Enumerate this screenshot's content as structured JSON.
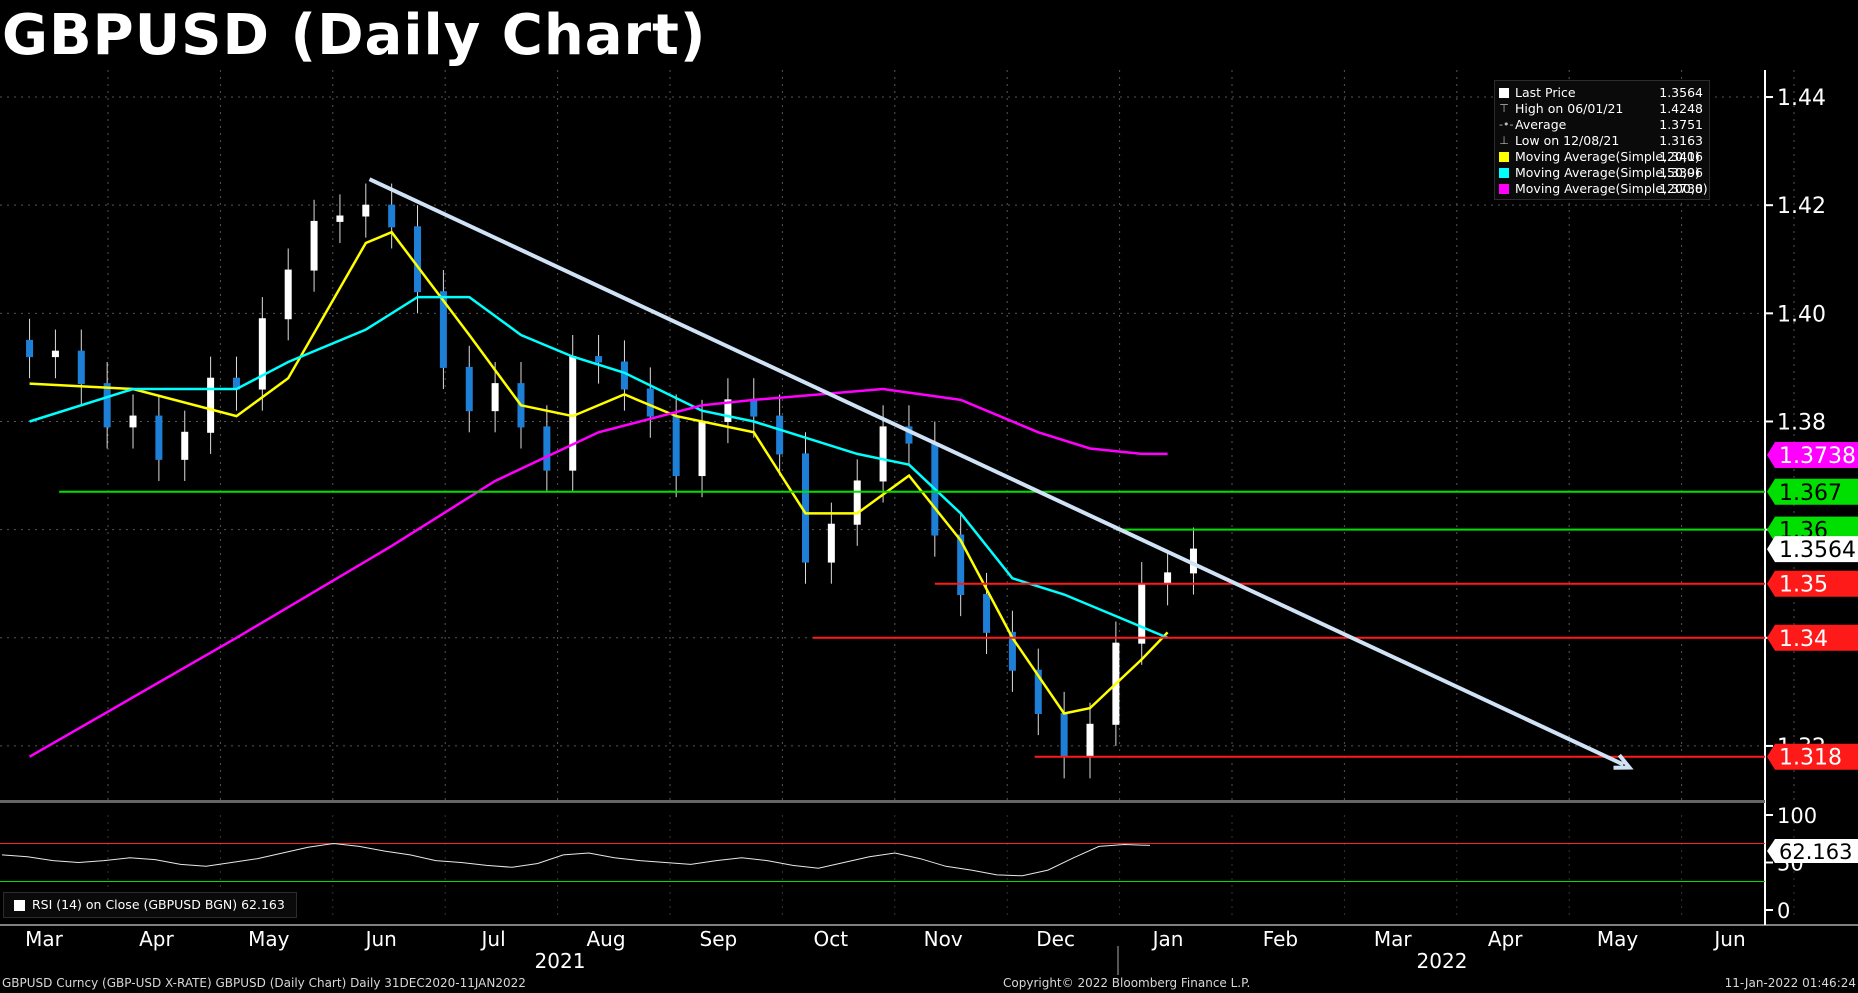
{
  "title": "GBPUSD (Daily Chart)",
  "chart_data": {
    "type": "candlestick",
    "symbol": "GBPUSD",
    "price_axis": {
      "ticks": [
        "1.44",
        "1.42",
        "1.40",
        "1.38",
        "1.36",
        "1.34",
        "1.32"
      ],
      "range": [
        1.31,
        1.445
      ]
    },
    "months": [
      "Mar",
      "Apr",
      "May",
      "Jun",
      "Jul",
      "Aug",
      "Sep",
      "Oct",
      "Nov",
      "Dec",
      "Jan",
      "Feb",
      "Mar",
      "Apr",
      "May",
      "Jun"
    ],
    "years": [
      "2021",
      "2022"
    ],
    "candles_weekly_approx": [
      {
        "date": "2021-03-01",
        "close": 1.392
      },
      {
        "date": "2021-03-08",
        "close": 1.393
      },
      {
        "date": "2021-03-15",
        "close": 1.387
      },
      {
        "date": "2021-03-22",
        "close": 1.379
      },
      {
        "date": "2021-03-29",
        "close": 1.381
      },
      {
        "date": "2021-04-05",
        "close": 1.373
      },
      {
        "date": "2021-04-12",
        "close": 1.378
      },
      {
        "date": "2021-04-19",
        "close": 1.388
      },
      {
        "date": "2021-04-26",
        "close": 1.386
      },
      {
        "date": "2021-05-03",
        "close": 1.399
      },
      {
        "date": "2021-05-10",
        "close": 1.408
      },
      {
        "date": "2021-05-17",
        "close": 1.417
      },
      {
        "date": "2021-05-24",
        "close": 1.418
      },
      {
        "date": "2021-05-31",
        "close": 1.42
      },
      {
        "date": "2021-06-07",
        "close": 1.416
      },
      {
        "date": "2021-06-14",
        "close": 1.404
      },
      {
        "date": "2021-06-21",
        "close": 1.39
      },
      {
        "date": "2021-06-28",
        "close": 1.382
      },
      {
        "date": "2021-07-05",
        "close": 1.387
      },
      {
        "date": "2021-07-12",
        "close": 1.379
      },
      {
        "date": "2021-07-19",
        "close": 1.371
      },
      {
        "date": "2021-07-26",
        "close": 1.392
      },
      {
        "date": "2021-08-02",
        "close": 1.391
      },
      {
        "date": "2021-08-09",
        "close": 1.386
      },
      {
        "date": "2021-08-16",
        "close": 1.381
      },
      {
        "date": "2021-08-23",
        "close": 1.37
      },
      {
        "date": "2021-08-30",
        "close": 1.38
      },
      {
        "date": "2021-09-06",
        "close": 1.384
      },
      {
        "date": "2021-09-13",
        "close": 1.381
      },
      {
        "date": "2021-09-20",
        "close": 1.374
      },
      {
        "date": "2021-09-27",
        "close": 1.354
      },
      {
        "date": "2021-10-04",
        "close": 1.361
      },
      {
        "date": "2021-10-11",
        "close": 1.369
      },
      {
        "date": "2021-10-18",
        "close": 1.379
      },
      {
        "date": "2021-10-25",
        "close": 1.376
      },
      {
        "date": "2021-11-01",
        "close": 1.359
      },
      {
        "date": "2021-11-08",
        "close": 1.348
      },
      {
        "date": "2021-11-15",
        "close": 1.341
      },
      {
        "date": "2021-11-22",
        "close": 1.334
      },
      {
        "date": "2021-11-29",
        "close": 1.326
      },
      {
        "date": "2021-12-06",
        "close": 1.318
      },
      {
        "date": "2021-12-13",
        "close": 1.324
      },
      {
        "date": "2021-12-20",
        "close": 1.339
      },
      {
        "date": "2021-12-27",
        "close": 1.35
      },
      {
        "date": "2022-01-03",
        "close": 1.352
      },
      {
        "date": "2022-01-10",
        "close": 1.3564
      }
    ],
    "moving_averages": [
      {
        "name": "Moving Average(Simple,20,0)",
        "color": "#ffff00",
        "last": 1.3416,
        "points": [
          [
            0,
            1.387
          ],
          [
            4,
            1.386
          ],
          [
            8,
            1.381
          ],
          [
            10,
            1.388
          ],
          [
            13,
            1.413
          ],
          [
            14,
            1.415
          ],
          [
            17,
            1.396
          ],
          [
            19,
            1.383
          ],
          [
            21,
            1.381
          ],
          [
            23,
            1.385
          ],
          [
            25,
            1.381
          ],
          [
            28,
            1.378
          ],
          [
            30,
            1.363
          ],
          [
            32,
            1.363
          ],
          [
            34,
            1.37
          ],
          [
            36,
            1.358
          ],
          [
            38,
            1.34
          ],
          [
            40,
            1.326
          ],
          [
            41,
            1.327
          ],
          [
            43,
            1.336
          ],
          [
            44,
            1.341
          ]
        ]
      },
      {
        "name": "Moving Average(Simple,50,0)",
        "color": "#00ffff",
        "last": 1.3396,
        "points": [
          [
            0,
            1.38
          ],
          [
            4,
            1.386
          ],
          [
            8,
            1.386
          ],
          [
            10,
            1.391
          ],
          [
            13,
            1.397
          ],
          [
            15,
            1.403
          ],
          [
            17,
            1.403
          ],
          [
            19,
            1.396
          ],
          [
            21,
            1.392
          ],
          [
            23,
            1.389
          ],
          [
            26,
            1.382
          ],
          [
            28,
            1.38
          ],
          [
            30,
            1.377
          ],
          [
            32,
            1.374
          ],
          [
            34,
            1.372
          ],
          [
            36,
            1.363
          ],
          [
            38,
            1.351
          ],
          [
            40,
            1.348
          ],
          [
            42,
            1.344
          ],
          [
            44,
            1.34
          ]
        ]
      },
      {
        "name": "Moving Average(Simple,200,0)",
        "color": "#ff00ff",
        "last": 1.3738,
        "points": [
          [
            0,
            1.318
          ],
          [
            8,
            1.34
          ],
          [
            14,
            1.357
          ],
          [
            18,
            1.369
          ],
          [
            22,
            1.378
          ],
          [
            26,
            1.383
          ],
          [
            28,
            1.384
          ],
          [
            33,
            1.386
          ],
          [
            36,
            1.384
          ],
          [
            39,
            1.378
          ],
          [
            41,
            1.375
          ],
          [
            43,
            1.374
          ],
          [
            44,
            1.374
          ]
        ]
      }
    ],
    "trendline": {
      "start": {
        "date": "2021-06-01",
        "price": 1.4248
      },
      "end": {
        "date": "2022-05-08",
        "price": 1.316
      },
      "color": "#d0e2f5"
    },
    "levels": [
      {
        "price": 1.367,
        "label": "1.367",
        "color": "#00e000"
      },
      {
        "price": 1.36,
        "label": "1.36",
        "color": "#00e000"
      },
      {
        "price": 1.35,
        "label": "1.35",
        "color": "#ff1a1a"
      },
      {
        "price": 1.34,
        "label": "1.34",
        "color": "#ff1a1a"
      },
      {
        "price": 1.318,
        "label": "1.318",
        "color": "#ff1a1a"
      }
    ],
    "axis_tags": [
      {
        "label": "1.3738",
        "price": 1.3738,
        "bg": "#ff00ff",
        "fg": "#fff"
      },
      {
        "label": "1.3564",
        "price": 1.3564,
        "bg": "#ffffff",
        "fg": "#000"
      }
    ],
    "legend": [
      {
        "label": "Last Price",
        "value": "1.3564",
        "color": "#ffffff",
        "icon": "box"
      },
      {
        "label": "High on 06/01/21",
        "value": "1.4248",
        "color": "#bbbbbb",
        "icon": "high-marker"
      },
      {
        "label": "Average",
        "value": "1.3751",
        "color": "#bbbbbb",
        "icon": "average-marker"
      },
      {
        "label": "Low on 12/08/21",
        "value": "1.3163",
        "color": "#bbbbbb",
        "icon": "low-marker"
      },
      {
        "label": "Moving Average(Simple,20,0)",
        "value": "1.3416",
        "color": "#ffff00",
        "icon": "box"
      },
      {
        "label": "Moving Average(Simple,50,0)",
        "value": "1.3396",
        "color": "#00ffff",
        "icon": "box"
      },
      {
        "label": "Moving Average(Simple,200,0)",
        "value": "1.3738",
        "color": "#ff00ff",
        "icon": "box"
      }
    ],
    "rsi": {
      "label": "RSI (14)  on Close (GBPUSD BGN) 62.163",
      "value": 62.163,
      "value_text": "62.163",
      "ticks": [
        "100",
        "50",
        "0"
      ],
      "overbought": 70,
      "oversold": 30,
      "series": [
        58,
        56,
        52,
        50,
        52,
        55,
        53,
        48,
        46,
        50,
        54,
        60,
        66,
        70,
        67,
        62,
        58,
        52,
        50,
        47,
        45,
        49,
        58,
        60,
        55,
        52,
        50,
        48,
        52,
        55,
        52,
        47,
        44,
        50,
        56,
        60,
        54,
        46,
        42,
        37,
        36,
        42,
        55,
        67,
        69,
        68
      ]
    }
  },
  "footer": {
    "left": "GBPUSD Curncy (GBP-USD X-RATE) GBPUSD (Daily Chart)  Daily 31DEC2020-11JAN2022",
    "center": "Copyright© 2022 Bloomberg Finance L.P.",
    "right": "11-Jan-2022 01:46:24"
  }
}
